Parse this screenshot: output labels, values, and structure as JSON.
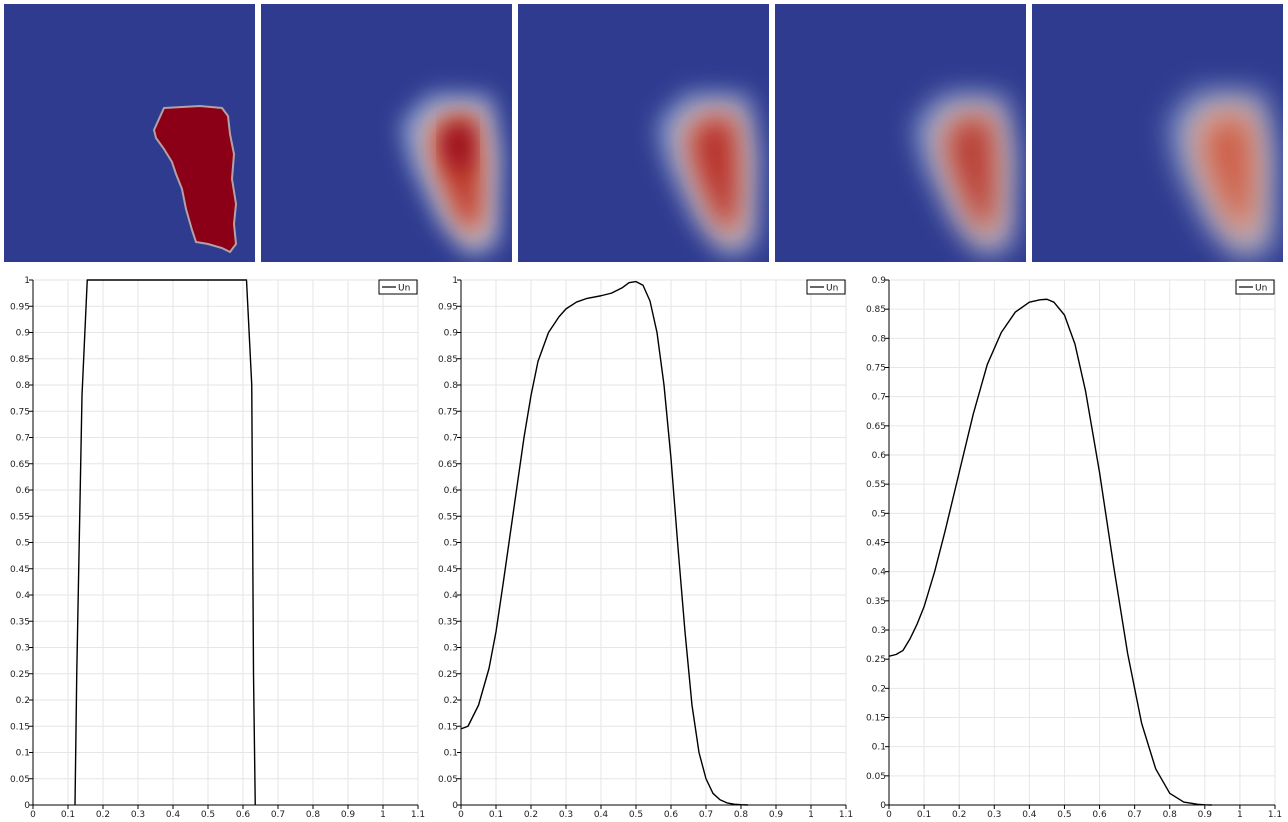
{
  "colors": {
    "field_low": "#2f3b8f",
    "field_high": "#8b0016",
    "line": "#000000",
    "grid": "#e6e6e6",
    "axis": "#000000"
  },
  "fields": [
    {
      "name": "field-panel-1",
      "peak_color": "#8b0016",
      "sharp": true
    },
    {
      "name": "field-panel-2",
      "peak_color": "#a51e24",
      "sharp": false
    },
    {
      "name": "field-panel-3",
      "peak_color": "#b8302b",
      "sharp": false
    },
    {
      "name": "field-panel-4",
      "peak_color": "#b83a30",
      "sharp": false
    },
    {
      "name": "field-panel-5",
      "peak_color": "#cc5a45",
      "sharp": false
    }
  ],
  "chart_data": [
    {
      "type": "line",
      "xlim": [
        0,
        1.1
      ],
      "ylim": [
        0,
        1
      ],
      "xticks": [
        "0",
        "0.1",
        "0.2",
        "0.3",
        "0.4",
        "0.5",
        "0.6",
        "0.7",
        "0.8",
        "0.9",
        "1",
        "1.1"
      ],
      "yticks": [
        "0",
        "0.05",
        "0.1",
        "0.15",
        "0.2",
        "0.25",
        "0.3",
        "0.35",
        "0.4",
        "0.45",
        "0.5",
        "0.55",
        "0.6",
        "0.65",
        "0.7",
        "0.75",
        "0.8",
        "0.85",
        "0.9",
        "0.95",
        "1"
      ],
      "grid": true,
      "legend_position": "top-right",
      "series": [
        {
          "name": "Un",
          "x": [
            0.12,
            0.125,
            0.14,
            0.155,
            0.3,
            0.45,
            0.61,
            0.625,
            0.63,
            0.635
          ],
          "y": [
            0,
            0.25,
            0.78,
            1,
            1,
            1,
            1,
            0.8,
            0.25,
            0
          ]
        }
      ]
    },
    {
      "type": "line",
      "xlim": [
        0,
        1.1
      ],
      "ylim": [
        0,
        1
      ],
      "xticks": [
        "0",
        "0.1",
        "0.2",
        "0.3",
        "0.4",
        "0.5",
        "0.6",
        "0.7",
        "0.8",
        "0.9",
        "1",
        "1.1"
      ],
      "yticks": [
        "0",
        "0.05",
        "0.1",
        "0.15",
        "0.2",
        "0.25",
        "0.3",
        "0.35",
        "0.4",
        "0.45",
        "0.5",
        "0.55",
        "0.6",
        "0.65",
        "0.7",
        "0.75",
        "0.8",
        "0.85",
        "0.9",
        "0.95",
        "1"
      ],
      "grid": true,
      "legend_position": "top-right",
      "series": [
        {
          "name": "Un",
          "x": [
            0,
            0.02,
            0.05,
            0.08,
            0.1,
            0.12,
            0.15,
            0.18,
            0.2,
            0.22,
            0.25,
            0.28,
            0.3,
            0.33,
            0.36,
            0.4,
            0.43,
            0.46,
            0.48,
            0.5,
            0.52,
            0.54,
            0.56,
            0.58,
            0.6,
            0.62,
            0.64,
            0.66,
            0.68,
            0.7,
            0.72,
            0.74,
            0.76,
            0.78,
            0.8,
            0.82
          ],
          "y": [
            0.145,
            0.15,
            0.19,
            0.26,
            0.33,
            0.42,
            0.56,
            0.7,
            0.78,
            0.845,
            0.9,
            0.93,
            0.945,
            0.958,
            0.965,
            0.97,
            0.975,
            0.985,
            0.995,
            0.997,
            0.99,
            0.96,
            0.9,
            0.8,
            0.66,
            0.49,
            0.33,
            0.19,
            0.1,
            0.05,
            0.022,
            0.01,
            0.004,
            0.0015,
            0.0005,
            0
          ]
        }
      ]
    },
    {
      "type": "line",
      "xlim": [
        0,
        1.1
      ],
      "ylim": [
        0,
        0.9
      ],
      "xticks": [
        "0",
        "0.1",
        "0.2",
        "0.3",
        "0.4",
        "0.5",
        "0.6",
        "0.7",
        "0.8",
        "0.9",
        "1",
        "1.1"
      ],
      "yticks": [
        "0",
        "0.05",
        "0.1",
        "0.15",
        "0.2",
        "0.25",
        "0.3",
        "0.35",
        "0.4",
        "0.45",
        "0.5",
        "0.55",
        "0.6",
        "0.65",
        "0.7",
        "0.75",
        "0.8",
        "0.85",
        "0.9"
      ],
      "grid": true,
      "legend_position": "top-right",
      "series": [
        {
          "name": "Un",
          "x": [
            0,
            0.02,
            0.04,
            0.06,
            0.08,
            0.1,
            0.13,
            0.16,
            0.2,
            0.24,
            0.28,
            0.32,
            0.36,
            0.4,
            0.43,
            0.45,
            0.47,
            0.5,
            0.53,
            0.56,
            0.6,
            0.64,
            0.68,
            0.72,
            0.76,
            0.8,
            0.84,
            0.88,
            0.9,
            0.92
          ],
          "y": [
            0.255,
            0.258,
            0.265,
            0.285,
            0.31,
            0.34,
            0.4,
            0.47,
            0.57,
            0.67,
            0.755,
            0.81,
            0.845,
            0.862,
            0.866,
            0.867,
            0.862,
            0.84,
            0.79,
            0.71,
            0.57,
            0.41,
            0.26,
            0.14,
            0.062,
            0.02,
            0.005,
            0.0012,
            0.0004,
            0
          ]
        }
      ]
    }
  ]
}
